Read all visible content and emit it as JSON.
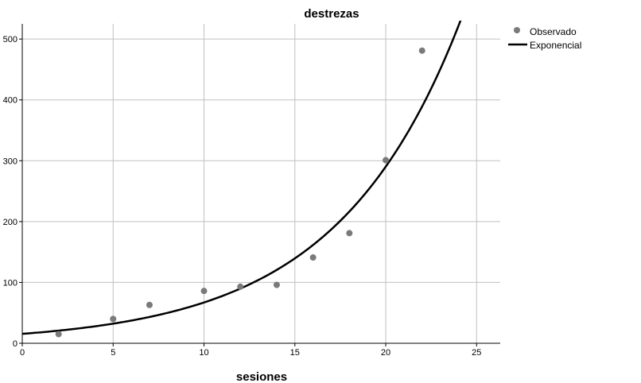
{
  "chart_data": {
    "type": "scatter",
    "title": "destrezas",
    "xlabel": "sesiones",
    "ylabel": "",
    "xlim": [
      0,
      26.3
    ],
    "ylim": [
      0,
      525
    ],
    "xticks": [
      0,
      5,
      10,
      15,
      20,
      25
    ],
    "yticks": [
      0,
      100,
      200,
      300,
      400,
      500
    ],
    "grid": true,
    "legend": "top-right",
    "colors": {
      "points": "#7a7a7a",
      "curve": "#000000",
      "grid": "#c0c0c0"
    },
    "series": [
      {
        "name": "Observado",
        "kind": "points",
        "x": [
          2,
          5,
          7,
          10,
          12,
          14,
          16,
          18,
          20,
          22
        ],
        "y": [
          15,
          40,
          63,
          86,
          93,
          96,
          141,
          181,
          301,
          481
        ]
      },
      {
        "name": "Exponencial",
        "kind": "fit",
        "model": "exponential",
        "a": 15.5,
        "b": 0.1465
      }
    ]
  }
}
